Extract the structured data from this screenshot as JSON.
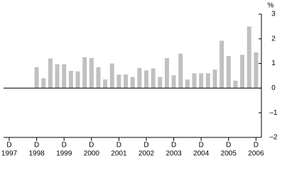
{
  "chart_data": {
    "type": "bar",
    "unit": "%",
    "categories": [
      [
        "D",
        "1997"
      ],
      null,
      null,
      null,
      [
        "D",
        "1998"
      ],
      null,
      null,
      null,
      [
        "D",
        "1999"
      ],
      null,
      null,
      null,
      [
        "D",
        "2000"
      ],
      null,
      null,
      null,
      [
        "D",
        "2001"
      ],
      null,
      null,
      null,
      [
        "D",
        "2002"
      ],
      null,
      null,
      null,
      [
        "D",
        "2003"
      ],
      null,
      null,
      null,
      [
        "D",
        "2004"
      ],
      null,
      null,
      null,
      [
        "D",
        "2005"
      ],
      null,
      null,
      null,
      [
        "D",
        "2006"
      ]
    ],
    "values": [
      null,
      null,
      null,
      null,
      0.85,
      0.4,
      1.2,
      0.97,
      0.97,
      0.7,
      0.68,
      1.25,
      1.22,
      0.85,
      0.35,
      1.0,
      0.55,
      0.55,
      0.45,
      0.82,
      0.72,
      0.8,
      0.45,
      1.22,
      0.52,
      1.4,
      0.35,
      0.6,
      0.6,
      0.6,
      0.75,
      1.92,
      1.3,
      0.3,
      1.35,
      2.5,
      1.45
    ],
    "color": "#c0c0c0",
    "ylim": [
      -2,
      3
    ],
    "yticks": [
      {
        "value": -2,
        "label": "–2"
      },
      {
        "value": -1,
        "label": "–1"
      },
      0,
      1,
      2,
      3
    ]
  }
}
